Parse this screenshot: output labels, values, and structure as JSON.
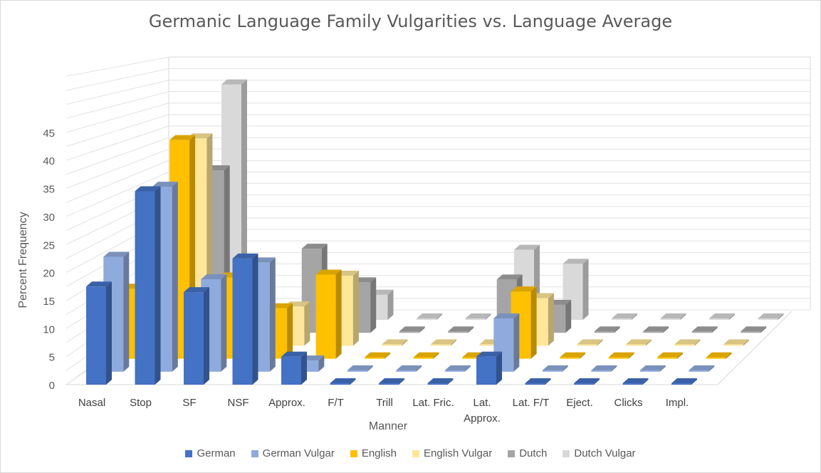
{
  "chart_data": {
    "type": "bar",
    "title": "Germanic Language Family Vulgarities vs. Language Average",
    "xlabel": "Manner",
    "ylabel": "Percent Frequency",
    "ylim": [
      0,
      45
    ],
    "yticks": [
      "0",
      "5",
      "10",
      "15",
      "20",
      "25",
      "30",
      "35",
      "40",
      "45"
    ],
    "categories": [
      "Nasal",
      "Stop",
      "SF",
      "NSF",
      "Approx.",
      "F/T",
      "Trill",
      "Lat. Fric.",
      "Lat. Approx.",
      "Lat. F/T",
      "Eject.",
      "Clicks",
      "Impl."
    ],
    "legend_position": "bottom",
    "series": [
      {
        "name": "German",
        "color": "#4472c4",
        "values": [
          17.5,
          34.5,
          16.5,
          22.5,
          5,
          0,
          0,
          0,
          5,
          0,
          0,
          0,
          0
        ]
      },
      {
        "name": "German Vulgar",
        "color": "#8faadc",
        "values": [
          20.5,
          33,
          16.5,
          19.5,
          2,
          0,
          0,
          0,
          9.5,
          0,
          0,
          0,
          0
        ]
      },
      {
        "name": "English",
        "color": "#ffc000",
        "values": [
          12.5,
          39,
          14.5,
          9,
          15,
          0,
          0,
          0,
          12,
          0,
          0,
          0,
          0
        ]
      },
      {
        "name": "English Vulgar",
        "color": "#ffe699",
        "values": [
          0,
          37,
          0,
          7,
          12.5,
          0,
          0,
          0,
          8.5,
          0,
          0,
          0,
          0
        ]
      },
      {
        "name": "Dutch",
        "color": "#a5a5a5",
        "values": [
          0,
          29,
          0,
          15,
          9,
          0,
          0,
          9.5,
          5,
          0,
          0,
          0,
          0
        ]
      },
      {
        "name": "Dutch Vulgar",
        "color": "#d9d9d9",
        "values": [
          0,
          42,
          0,
          0,
          4.5,
          0,
          0,
          12.5,
          10,
          0,
          0,
          0,
          0
        ]
      }
    ]
  }
}
